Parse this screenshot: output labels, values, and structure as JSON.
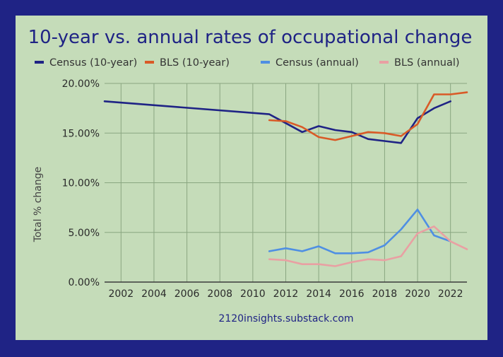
{
  "chart_data": {
    "type": "line",
    "title": "10-year vs. annual rates of occupational change",
    "ylabel": "Total % change",
    "xlabel": "",
    "source": "2120insights.substack.com",
    "xlim": [
      2001,
      2023
    ],
    "ylim": [
      0,
      20
    ],
    "x_ticks": [
      "2002",
      "2004",
      "2006",
      "2008",
      "2010",
      "2012",
      "2014",
      "2016",
      "2018",
      "2020",
      "2022"
    ],
    "y_ticks": [
      "0.00%",
      "5.00%",
      "10.00%",
      "15.00%",
      "20.00%"
    ],
    "grid": true,
    "legend_position": "top",
    "series": [
      {
        "name": "Census (10-year)",
        "color": "#1f2385",
        "x": [
          2001,
          2011,
          2012,
          2013,
          2014,
          2015,
          2016,
          2017,
          2018,
          2019,
          2020,
          2021,
          2022
        ],
        "values": [
          18.2,
          16.9,
          16.0,
          15.1,
          15.7,
          15.3,
          15.1,
          14.4,
          14.2,
          14.0,
          16.5,
          17.5,
          18.2
        ]
      },
      {
        "name": "BLS (10-year)",
        "color": "#d95a27",
        "x": [
          2011,
          2012,
          2013,
          2014,
          2015,
          2016,
          2017,
          2018,
          2019,
          2020,
          2021,
          2022,
          2023
        ],
        "values": [
          16.3,
          16.2,
          15.6,
          14.6,
          14.3,
          14.7,
          15.1,
          15.0,
          14.7,
          15.9,
          18.9,
          18.9,
          19.1
        ]
      },
      {
        "name": "Census (annual)",
        "color": "#4f8fe3",
        "x": [
          2011,
          2012,
          2013,
          2014,
          2015,
          2016,
          2017,
          2018,
          2019,
          2020,
          2021,
          2022
        ],
        "values": [
          3.1,
          3.4,
          3.1,
          3.6,
          2.9,
          2.9,
          3.0,
          3.7,
          5.3,
          7.3,
          4.7,
          4.1
        ]
      },
      {
        "name": "BLS (annual)",
        "color": "#e9a0a3",
        "x": [
          2011,
          2012,
          2013,
          2014,
          2015,
          2016,
          2017,
          2018,
          2019,
          2020,
          2021,
          2022,
          2023
        ],
        "values": [
          2.3,
          2.2,
          1.8,
          1.8,
          1.6,
          2.0,
          2.3,
          2.2,
          2.6,
          4.9,
          5.6,
          4.1,
          3.3
        ]
      }
    ]
  }
}
